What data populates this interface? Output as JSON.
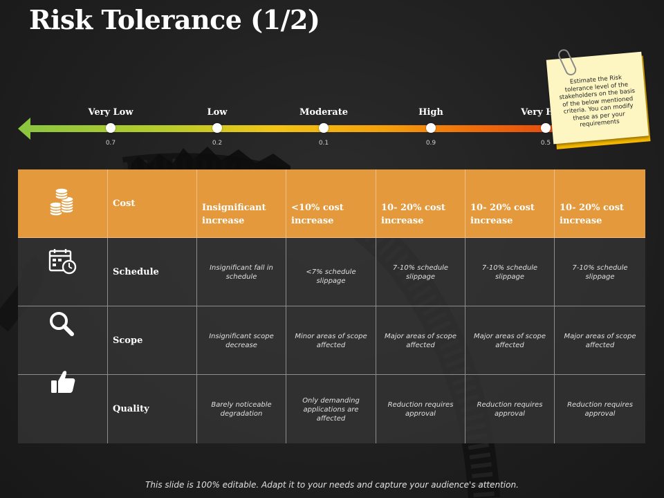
{
  "title": "Risk Tolerance (1/2)",
  "scale": {
    "levels": [
      {
        "label": "Very Low",
        "value": "0.7"
      },
      {
        "label": "Low",
        "value": "0.2"
      },
      {
        "label": "Moderate",
        "value": "0.1"
      },
      {
        "label": "High",
        "value": "0.9"
      },
      {
        "label": "Very High",
        "value": "0.5"
      }
    ],
    "colors": {
      "start": "#8cc63f",
      "mid": "#f2c515",
      "end": "#e0440e"
    }
  },
  "note": {
    "text": "Estimate the Risk tolerance level of the stakeholders on the basis of the below mentioned criteria. You can modify these as per your requirements"
  },
  "table": {
    "rows": [
      {
        "icon": "coins-icon",
        "name": "Cost",
        "cells": [
          "Insignificant increase",
          "<10% cost increase",
          "10- 20% cost increase",
          "10- 20% cost increase",
          "10- 20% cost increase"
        ]
      },
      {
        "icon": "schedule-calendar-clock-icon",
        "name": "Schedule",
        "cells": [
          "Insignificant fall in schedule",
          "<7% schedule slippage",
          "7-10% schedule slippage",
          "7-10% schedule slippage",
          "7-10% schedule slippage"
        ]
      },
      {
        "icon": "magnifier-icon",
        "name": "Scope",
        "cells": [
          "Insignificant scope decrease",
          "Minor areas of scope affected",
          "Major areas of scope affected",
          "Major areas of scope affected",
          "Major areas of scope affected"
        ]
      },
      {
        "icon": "thumbs-up-icon",
        "name": "Quality",
        "cells": [
          "Barely noticeable degradation",
          "Only demanding applications are affected",
          "Reduction requires approval",
          "Reduction requires approval",
          "Reduction requires approval"
        ]
      }
    ],
    "header_color": "#e3993c"
  },
  "footer": "This slide is 100% editable. Adapt it to your needs and capture your audience's attention."
}
